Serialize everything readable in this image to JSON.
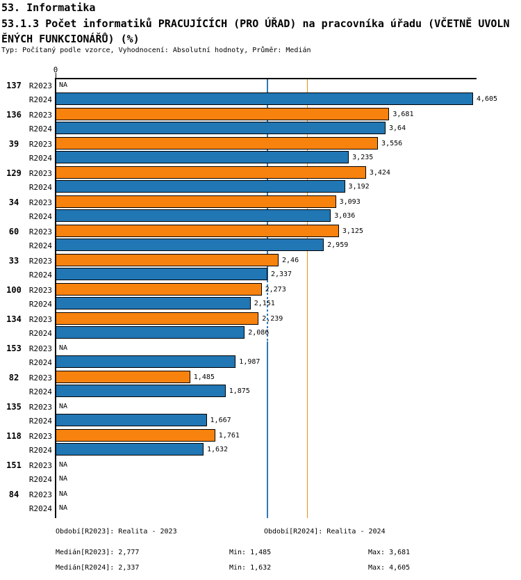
{
  "page": {
    "section_title": "53. Informatika",
    "chart_title": "53.1.3 Počet informatiků PRACUJÍCÍCH (PRO ÚŘAD) na pracovníka úřadu (VČETNĚ UVOLNĚNÝCH FUNKCIONÁŘŮ) (%)",
    "subtitle": "Typ: Počítaný podle vzorce, Vyhodnocení: Absolutní hodnoty, Průměr: Medián"
  },
  "chart_data": {
    "type": "bar",
    "orientation": "horizontal",
    "title": "53.1.3 Počet informatiků PRACUJÍCÍCH (PRO ÚŘAD) na pracovníka úřadu (VČETNĚ UVOLNĚNÝCH FUNKCIONÁŘŮ) (%)",
    "axis": {
      "zero_label": "0",
      "min": 0,
      "max": 4.65,
      "grid": false
    },
    "na_label": "NA",
    "categories": [
      "137",
      "136",
      "39",
      "129",
      "34",
      "60",
      "33",
      "100",
      "134",
      "153",
      "82",
      "135",
      "118",
      "151",
      "84"
    ],
    "series": [
      {
        "name": "R2023",
        "color": "#f8820e",
        "values": [
          null,
          3.681,
          3.556,
          3.424,
          3.093,
          3.125,
          2.46,
          2.273,
          2.239,
          null,
          1.485,
          null,
          1.761,
          null,
          null
        ],
        "labels": [
          "NA",
          "3,681",
          "3,556",
          "3,424",
          "3,093",
          "3,125",
          "2,46",
          "2,273",
          "2,239",
          "NA",
          "1,485",
          "NA",
          "1,761",
          "NA",
          "NA"
        ]
      },
      {
        "name": "R2024",
        "color": "#2176b4",
        "values": [
          4.605,
          3.64,
          3.235,
          3.192,
          3.036,
          2.959,
          2.337,
          2.151,
          2.086,
          1.987,
          1.875,
          1.667,
          1.632,
          null,
          null
        ],
        "labels": [
          "4,605",
          "3,64",
          "3,235",
          "3,192",
          "3,036",
          "2,959",
          "2,337",
          "2,151",
          "2,086",
          "1,987",
          "1,875",
          "1,667",
          "1,632",
          "NA",
          "NA"
        ]
      }
    ],
    "reference_lines": [
      {
        "name": "median-r2023",
        "value": 2.777,
        "color": "#ee8e10"
      },
      {
        "name": "median-r2024",
        "value": 2.337,
        "color": "#2d79b8"
      }
    ],
    "legend": {
      "r2023": "Období[R2023]: Realita - 2023",
      "r2024": "Období[R2024]: Realita - 2024"
    },
    "stats": {
      "median_r2023": "Medián[R2023]: 2,777",
      "min_r2023": "Min: 1,485",
      "max_r2023": "Max: 3,681",
      "median_r2024": "Medián[R2024]: 2,337",
      "min_r2024": "Min: 1,632",
      "max_r2024": "Max: 4,605"
    }
  }
}
